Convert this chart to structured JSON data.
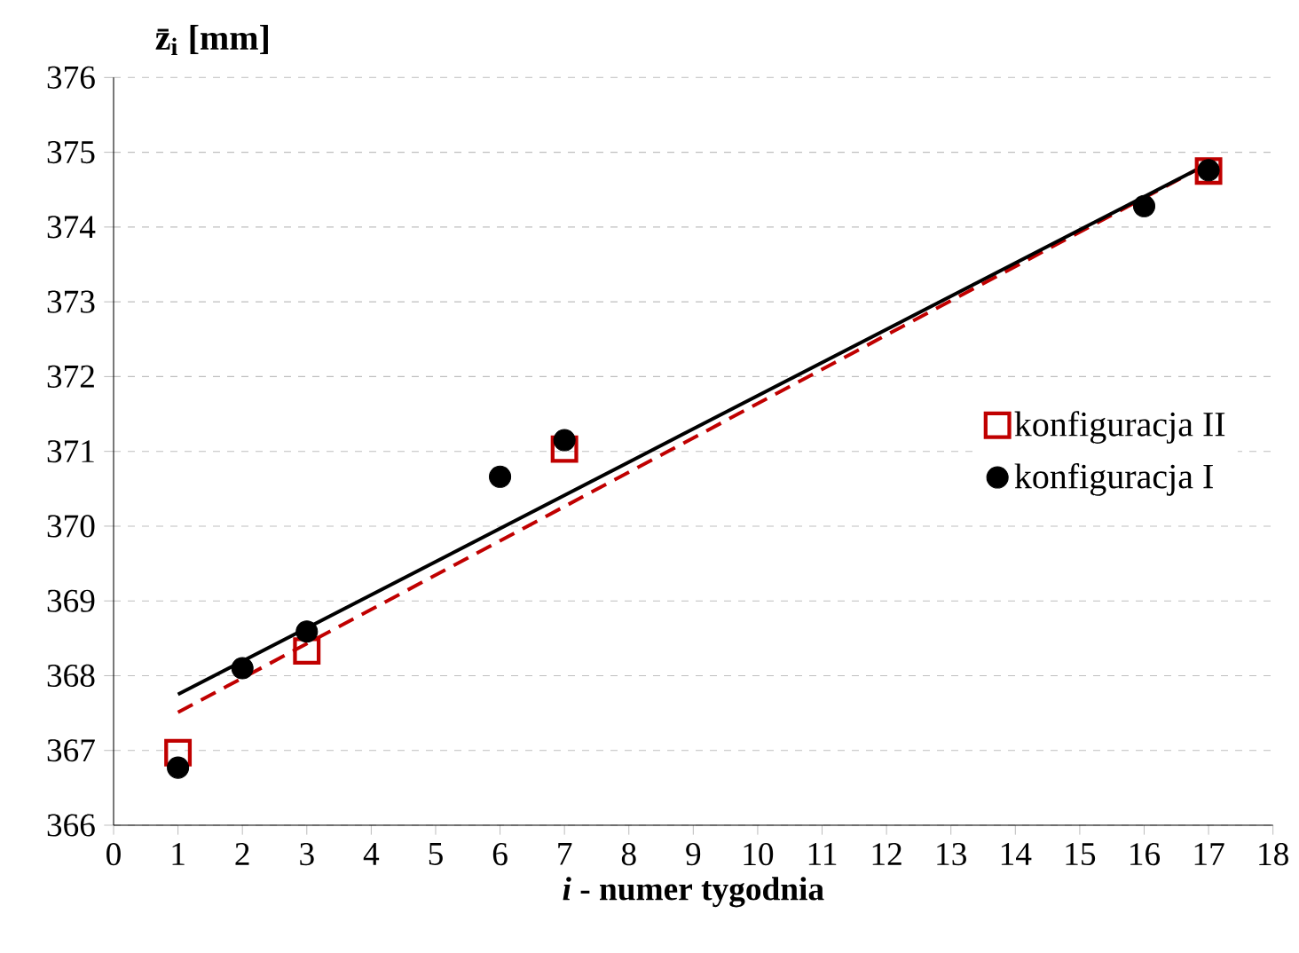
{
  "chart_data": {
    "type": "scatter",
    "ylabel": "z̄$_{i}$ [mm]",
    "xlabel": "*i* - numer tygodnia",
    "xlim": [
      0,
      18
    ],
    "xticks": [
      0,
      1,
      2,
      3,
      4,
      5,
      6,
      7,
      8,
      9,
      10,
      11,
      12,
      13,
      14,
      15,
      16,
      17,
      18
    ],
    "ylim": [
      366,
      376
    ],
    "yticks": [
      366,
      367,
      368,
      369,
      370,
      371,
      372,
      373,
      374,
      375,
      376
    ],
    "grid": "y",
    "legend": "right",
    "series": [
      {
        "name": "konfiguracja II",
        "marker": "square",
        "color": "#c00000",
        "x": [
          1,
          3,
          7,
          17
        ],
        "values": [
          366.97,
          368.33,
          371.03,
          374.75
        ]
      },
      {
        "name": "konfiguracja I",
        "marker": "circle",
        "color": "#000000",
        "x": [
          1,
          2,
          3,
          6,
          7,
          16,
          17
        ],
        "values": [
          366.77,
          368.1,
          368.59,
          370.66,
          371.15,
          374.28,
          374.76
        ]
      },
      {
        "type": "line",
        "line_style": "dashed",
        "color": "#c00000",
        "x": [
          1,
          17
        ],
        "values": [
          367.51,
          374.85
        ]
      },
      {
        "type": "line",
        "line_style": "solid",
        "color": "#000000",
        "x": [
          1,
          17
        ],
        "values": [
          367.75,
          374.85
        ]
      }
    ]
  }
}
